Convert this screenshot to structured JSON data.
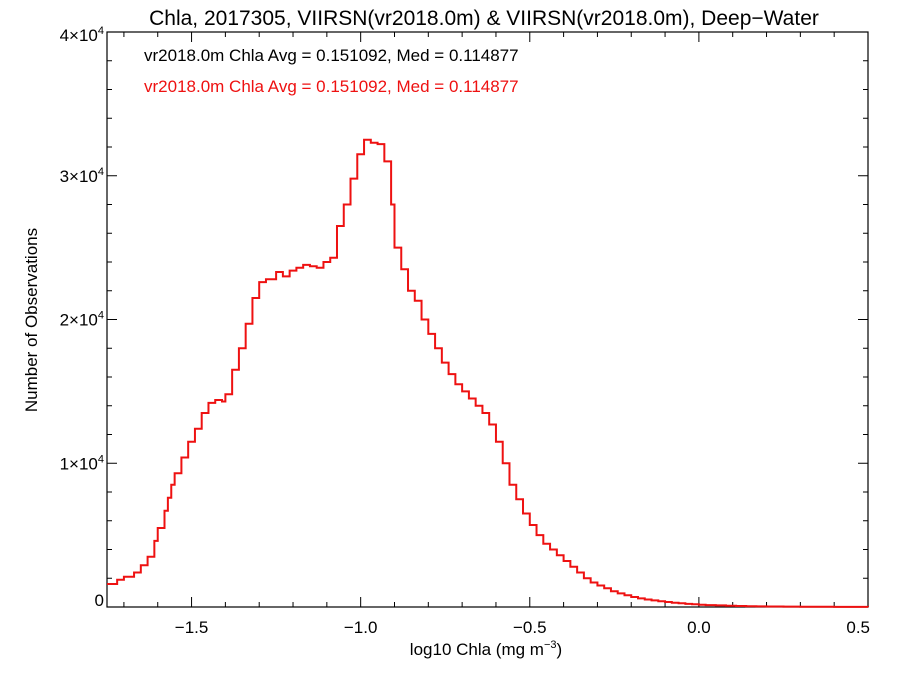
{
  "chart_data": {
    "type": "line",
    "title": "Chla, 2017305, VIIRSN(vr2018.0m) & VIIRSN(vr2018.0m), Deep−Water",
    "xlabel": "log10 Chla (mg m",
    "xlabel_sup": "−3",
    "xlabel_close": ")",
    "ylabel": "Number of Observations",
    "xlim": [
      -1.75,
      0.5
    ],
    "ylim": [
      0,
      40000
    ],
    "x_ticks": [
      {
        "value": -1.5,
        "label": "−1.5"
      },
      {
        "value": -1.0,
        "label": "−1.0"
      },
      {
        "value": -0.5,
        "label": "−0.5"
      },
      {
        "value": 0.0,
        "label": "0.0"
      },
      {
        "value": 0.5,
        "label": "0.5"
      }
    ],
    "y_ticks": [
      {
        "value": 0,
        "mantissa": "0",
        "exp": ""
      },
      {
        "value": 10000,
        "mantissa": "1×10",
        "exp": "4"
      },
      {
        "value": 20000,
        "mantissa": "2×10",
        "exp": "4"
      },
      {
        "value": 30000,
        "mantissa": "3×10",
        "exp": "4"
      },
      {
        "value": 40000,
        "mantissa": "4×10",
        "exp": "4"
      }
    ],
    "annotations": [
      {
        "text": "vr2018.0m Chla Avg = 0.151092, Med = 0.114877",
        "color": "#000000"
      },
      {
        "text": "vr2018.0m Chla Avg = 0.151092, Med = 0.114877",
        "color": "#ee1111"
      }
    ],
    "grid": false,
    "series": [
      {
        "color": "#ee1111",
        "style": "step",
        "x": [
          -1.75,
          -1.72,
          -1.7,
          -1.67,
          -1.65,
          -1.63,
          -1.61,
          -1.6,
          -1.58,
          -1.57,
          -1.56,
          -1.55,
          -1.53,
          -1.51,
          -1.49,
          -1.47,
          -1.45,
          -1.43,
          -1.41,
          -1.4,
          -1.38,
          -1.36,
          -1.34,
          -1.32,
          -1.3,
          -1.28,
          -1.26,
          -1.25,
          -1.23,
          -1.21,
          -1.19,
          -1.17,
          -1.15,
          -1.13,
          -1.11,
          -1.09,
          -1.07,
          -1.05,
          -1.03,
          -1.01,
          -0.99,
          -0.97,
          -0.95,
          -0.93,
          -0.91,
          -0.9,
          -0.88,
          -0.86,
          -0.84,
          -0.82,
          -0.8,
          -0.78,
          -0.76,
          -0.74,
          -0.72,
          -0.7,
          -0.68,
          -0.66,
          -0.64,
          -0.62,
          -0.6,
          -0.58,
          -0.56,
          -0.54,
          -0.52,
          -0.5,
          -0.48,
          -0.46,
          -0.44,
          -0.42,
          -0.4,
          -0.38,
          -0.36,
          -0.34,
          -0.32,
          -0.3,
          -0.28,
          -0.26,
          -0.24,
          -0.22,
          -0.2,
          -0.18,
          -0.16,
          -0.14,
          -0.12,
          -0.1,
          -0.08,
          -0.06,
          -0.04,
          -0.02,
          0.0,
          0.02,
          0.05,
          0.08,
          0.11,
          0.14,
          0.17,
          0.2,
          0.25,
          0.3,
          0.35,
          0.4,
          0.45,
          0.5
        ],
        "y": [
          1600,
          1900,
          2100,
          2400,
          2900,
          3500,
          4600,
          5500,
          6700,
          7600,
          8500,
          9300,
          10400,
          11500,
          12400,
          13500,
          14200,
          14400,
          14300,
          14800,
          16500,
          18000,
          19700,
          21500,
          22600,
          22800,
          22800,
          23300,
          23000,
          23400,
          23600,
          23800,
          23700,
          23600,
          24000,
          24300,
          26500,
          28000,
          29800,
          31500,
          32500,
          32300,
          32200,
          31000,
          28000,
          25000,
          23500,
          22000,
          21300,
          20000,
          19000,
          18000,
          17000,
          16200,
          15500,
          15000,
          14500,
          14000,
          13500,
          12700,
          11500,
          10000,
          8500,
          7500,
          6500,
          5700,
          5000,
          4400,
          4000,
          3600,
          3200,
          2800,
          2400,
          2000,
          1700,
          1500,
          1300,
          1100,
          950,
          820,
          700,
          600,
          520,
          460,
          400,
          350,
          300,
          260,
          220,
          190,
          160,
          130,
          110,
          90,
          70,
          55,
          45,
          35,
          25,
          20,
          15,
          10,
          8,
          5
        ]
      }
    ]
  }
}
